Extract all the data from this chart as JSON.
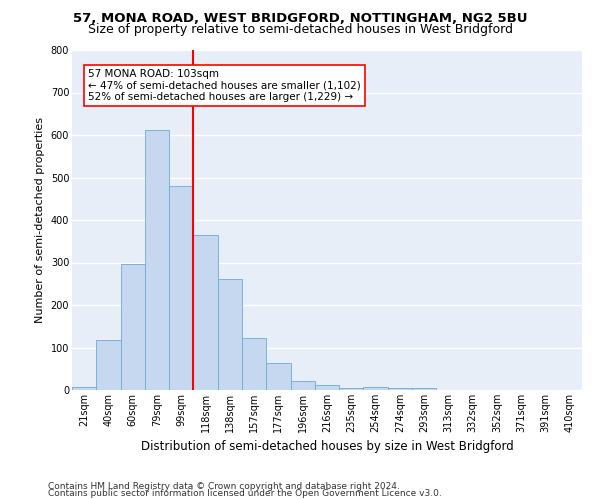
{
  "title": "57, MONA ROAD, WEST BRIDGFORD, NOTTINGHAM, NG2 5BU",
  "subtitle": "Size of property relative to semi-detached houses in West Bridgford",
  "xlabel": "Distribution of semi-detached houses by size in West Bridgford",
  "ylabel": "Number of semi-detached properties",
  "categories": [
    "21sqm",
    "40sqm",
    "60sqm",
    "79sqm",
    "99sqm",
    "118sqm",
    "138sqm",
    "157sqm",
    "177sqm",
    "196sqm",
    "216sqm",
    "235sqm",
    "254sqm",
    "274sqm",
    "293sqm",
    "313sqm",
    "332sqm",
    "352sqm",
    "371sqm",
    "391sqm",
    "410sqm"
  ],
  "bar_heights": [
    8,
    118,
    296,
    612,
    480,
    365,
    262,
    122,
    63,
    22,
    12,
    5,
    8,
    5,
    5,
    0,
    0,
    0,
    0,
    0,
    0
  ],
  "bar_color": "#c5d8f0",
  "bar_edge_color": "#6aaad4",
  "background_color": "#e8eef8",
  "grid_color": "#ffffff",
  "vline_x": 4.5,
  "vline_color": "red",
  "annotation_text": "57 MONA ROAD: 103sqm\n← 47% of semi-detached houses are smaller (1,102)\n52% of semi-detached houses are larger (1,229) →",
  "annotation_box_color": "#ffffff",
  "annotation_box_edge": "red",
  "ylim": [
    0,
    800
  ],
  "yticks": [
    0,
    100,
    200,
    300,
    400,
    500,
    600,
    700,
    800
  ],
  "footer1": "Contains HM Land Registry data © Crown copyright and database right 2024.",
  "footer2": "Contains public sector information licensed under the Open Government Licence v3.0.",
  "title_fontsize": 9.5,
  "subtitle_fontsize": 9,
  "xlabel_fontsize": 8.5,
  "ylabel_fontsize": 8,
  "tick_fontsize": 7,
  "annotation_fontsize": 7.5,
  "footer_fontsize": 6.5
}
